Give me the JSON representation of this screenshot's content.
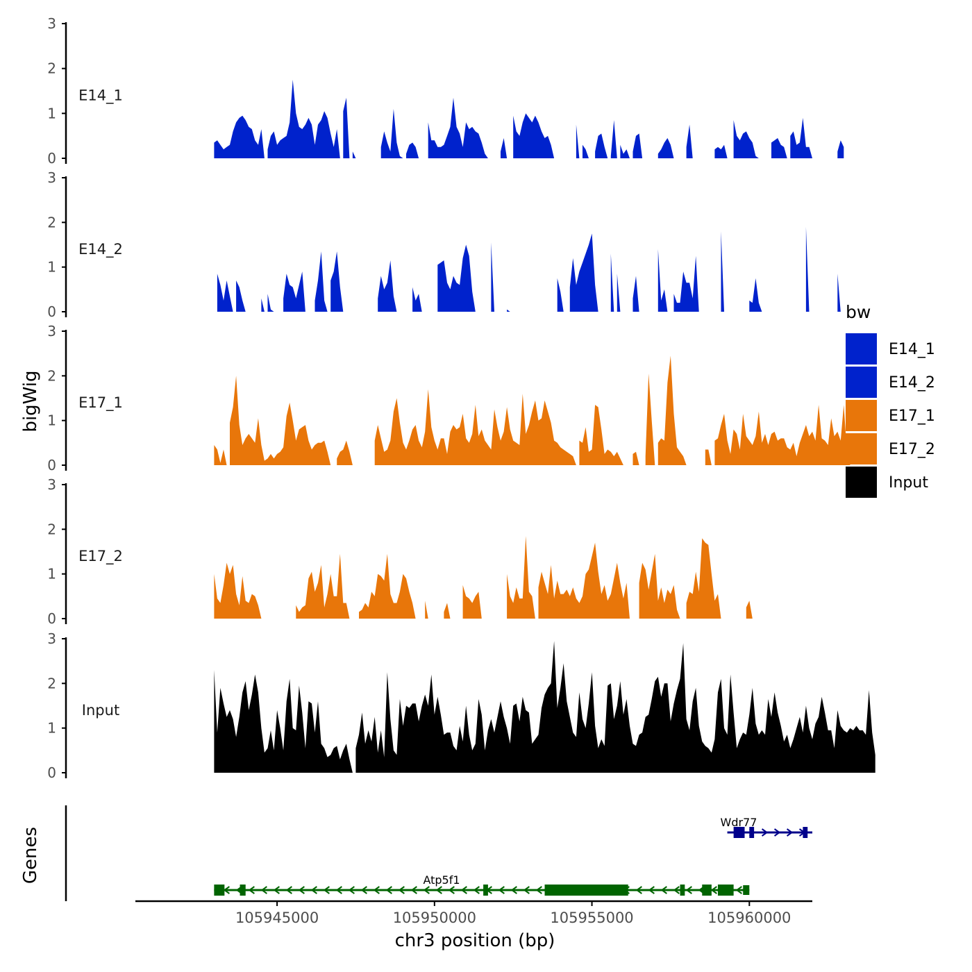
{
  "chart_data": {
    "type": "area",
    "y_axis_title": "bigWig",
    "genes_axis_title": "Genes",
    "xlabel": "chr3 position (bp)",
    "xlim": [
      105940500,
      105962000
    ],
    "x_ticks": [
      105945000,
      105950000,
      105955000,
      105960000
    ],
    "x_tick_labels": [
      "105945000",
      "105950000",
      "105955000",
      "105960000"
    ],
    "ylim": [
      0,
      3
    ],
    "y_ticks": [
      0,
      1,
      2,
      3
    ],
    "y_tick_labels": [
      "0",
      "1",
      "2",
      "3"
    ],
    "legend": {
      "title": "bw",
      "position": "right",
      "entries": [
        {
          "label": "E14_1",
          "color": "#0022cc"
        },
        {
          "label": "E14_2",
          "color": "#0022cc"
        },
        {
          "label": "E17_1",
          "color": "#e8760a"
        },
        {
          "label": "E17_2",
          "color": "#e8760a"
        },
        {
          "label": "Input",
          "color": "#000000"
        }
      ]
    },
    "x_start": 105943000,
    "x_step": 100,
    "series": [
      {
        "name": "E14_1",
        "color": "#0022cc",
        "values": [
          0.35,
          0.4,
          0.3,
          0.2,
          0.25,
          0.3,
          0.6,
          0.8,
          0.9,
          0.95,
          0.85,
          0.7,
          0.65,
          0.4,
          0.3,
          0.65,
          0.0,
          0.2,
          0.5,
          0.6,
          0.3,
          0.4,
          0.45,
          0.5,
          0.8,
          1.75,
          1.0,
          0.7,
          0.65,
          0.75,
          0.9,
          0.75,
          0.3,
          0.75,
          0.85,
          1.05,
          0.9,
          0.55,
          0.25,
          0.65,
          0.0,
          1.05,
          1.35,
          0.0,
          0.15,
          0.0,
          0.0,
          0.0,
          0.0,
          0.0,
          0.0,
          0.0,
          0.0,
          0.25,
          0.6,
          0.35,
          0.15,
          1.1,
          0.35,
          0.05,
          0.0,
          0.1,
          0.3,
          0.35,
          0.25,
          0.0,
          0.0,
          0.0,
          0.8,
          0.4,
          0.4,
          0.25,
          0.25,
          0.3,
          0.5,
          0.7,
          1.35,
          0.7,
          0.55,
          0.25,
          0.8,
          0.65,
          0.7,
          0.6,
          0.55,
          0.35,
          0.1,
          0.0,
          0.0,
          0.0,
          0.0,
          0.15,
          0.45,
          0.0,
          0.0,
          0.95,
          0.6,
          0.5,
          0.8,
          1.0,
          0.9,
          0.8,
          0.95,
          0.8,
          0.6,
          0.45,
          0.5,
          0.3,
          0.0,
          0.0,
          0.0,
          0.0,
          0.0,
          0.0,
          0.0,
          0.75,
          0.0,
          0.3,
          0.2,
          0.0,
          0.0,
          0.15,
          0.5,
          0.55,
          0.25,
          0.0,
          0.05,
          0.85,
          0.0,
          0.3,
          0.1,
          0.2,
          0.0,
          0.15,
          0.5,
          0.55,
          0.0,
          0.0,
          0.0,
          0.0,
          0.0,
          0.1,
          0.2,
          0.35,
          0.45,
          0.3,
          0.0,
          0.0,
          0.0,
          0.0,
          0.25,
          0.75,
          0.0,
          0.0,
          0.0,
          0.0,
          0.0,
          0.0,
          0.0,
          0.2,
          0.25,
          0.2,
          0.3,
          0.0,
          0.0,
          0.85,
          0.5,
          0.4,
          0.55,
          0.6,
          0.45,
          0.35,
          0.05,
          0.0,
          0.0,
          0.0,
          0.0,
          0.35,
          0.4,
          0.45,
          0.3,
          0.25,
          0.0,
          0.5,
          0.6,
          0.3,
          0.35,
          0.9,
          0.25,
          0.25,
          0.0,
          0.0,
          0.0,
          0.0,
          0.0,
          0.0,
          0.0,
          0.0,
          0.15,
          0.4,
          0.25
        ],
        "label": "E14_1"
      },
      {
        "name": "E14_2",
        "color": "#0022cc",
        "values": [
          0.0,
          0.85,
          0.6,
          0.25,
          0.7,
          0.35,
          0.0,
          0.7,
          0.55,
          0.25,
          0.0,
          0.0,
          0.0,
          0.0,
          0.0,
          0.3,
          0.0,
          0.4,
          0.05,
          0.0,
          0.0,
          0.0,
          0.3,
          0.85,
          0.6,
          0.55,
          0.3,
          0.6,
          0.9,
          0.0,
          0.0,
          0.0,
          0.25,
          0.7,
          1.35,
          0.25,
          0.0,
          0.7,
          0.9,
          1.35,
          0.55,
          0.0,
          0.0,
          0.0,
          0.0,
          0.0,
          0.0,
          0.0,
          0.0,
          0.0,
          0.0,
          0.0,
          0.3,
          0.8,
          0.5,
          0.65,
          1.15,
          0.35,
          0.0,
          0.0,
          0.0,
          0.0,
          0.0,
          0.55,
          0.25,
          0.4,
          0.0,
          0.0,
          0.0,
          0.0,
          0.0,
          1.05,
          1.1,
          1.15,
          0.65,
          0.5,
          0.8,
          0.65,
          0.6,
          1.2,
          1.5,
          1.25,
          0.45,
          0.0,
          0.0,
          0.0,
          0.0,
          0.0,
          1.55,
          0.0,
          0.0,
          0.0,
          0.0,
          0.05,
          0.0,
          0.0,
          0.0,
          0.0,
          0.0,
          0.0,
          0.0,
          0.0,
          0.0,
          0.0,
          0.0,
          0.0,
          0.0,
          0.0,
          0.0,
          0.75,
          0.45,
          0.0,
          0.0,
          0.55,
          1.2,
          0.6,
          0.9,
          1.1,
          1.3,
          1.5,
          1.75,
          0.6,
          0.0,
          0.0,
          0.0,
          0.0,
          1.3,
          0.0,
          0.85,
          0.0,
          0.0,
          0.0,
          0.0,
          0.3,
          0.8,
          0.0,
          0.0,
          0.0,
          0.0,
          0.0,
          0.0,
          1.4,
          0.25,
          0.5,
          0.0,
          0.0,
          0.4,
          0.2,
          0.2,
          0.9,
          0.65,
          0.65,
          0.3,
          1.25,
          0.0,
          0.0,
          0.0,
          0.0,
          0.0,
          0.0,
          0.0,
          1.8,
          0.0,
          0.0,
          0.0,
          0.0,
          0.0,
          0.0,
          0.0,
          0.0,
          0.25,
          0.2,
          0.75,
          0.2,
          0.0,
          0.0,
          0.0,
          0.0,
          0.0,
          0.0,
          0.0,
          0.0,
          0.0,
          0.0,
          0.0,
          0.0,
          0.0,
          0.0,
          1.9,
          0.0,
          0.0,
          0.0,
          0.0,
          0.0,
          0.0,
          0.0,
          0.0,
          0.0,
          0.85,
          0.0,
          0.0,
          0.0,
          0.0,
          0.0
        ],
        "label": "E14_2"
      },
      {
        "name": "E17_1",
        "color": "#e8760a",
        "values": [
          0.45,
          0.35,
          0.05,
          0.35,
          0.0,
          0.95,
          1.3,
          2.0,
          0.9,
          0.45,
          0.6,
          0.7,
          0.6,
          0.5,
          1.05,
          0.45,
          0.1,
          0.15,
          0.25,
          0.15,
          0.25,
          0.3,
          0.4,
          1.1,
          1.4,
          1.0,
          0.55,
          0.8,
          0.85,
          0.9,
          0.55,
          0.35,
          0.45,
          0.5,
          0.5,
          0.55,
          0.3,
          0.0,
          0.0,
          0.15,
          0.3,
          0.35,
          0.55,
          0.3,
          0.0,
          0.0,
          0.0,
          0.0,
          0.0,
          0.0,
          0.0,
          0.55,
          0.9,
          0.6,
          0.3,
          0.35,
          0.55,
          1.2,
          1.5,
          0.95,
          0.5,
          0.35,
          0.55,
          0.8,
          0.9,
          0.55,
          0.4,
          0.75,
          1.7,
          0.85,
          0.55,
          0.35,
          0.6,
          0.6,
          0.25,
          0.75,
          0.9,
          0.8,
          0.85,
          1.15,
          0.6,
          0.5,
          0.7,
          1.35,
          0.65,
          0.8,
          0.55,
          0.45,
          0.35,
          1.25,
          0.85,
          0.55,
          0.75,
          1.3,
          0.8,
          0.55,
          0.5,
          0.45,
          1.6,
          0.7,
          0.9,
          1.2,
          1.45,
          1.0,
          1.05,
          1.45,
          1.2,
          0.95,
          0.55,
          0.5,
          0.4,
          0.35,
          0.3,
          0.25,
          0.2,
          0.0,
          0.55,
          0.5,
          0.85,
          0.3,
          0.35,
          1.35,
          1.3,
          0.8,
          0.25,
          0.35,
          0.3,
          0.2,
          0.3,
          0.15,
          0.0,
          0.0,
          0.0,
          0.25,
          0.3,
          0.0,
          0.0,
          0.2,
          2.05,
          1.0,
          0.0,
          0.5,
          0.6,
          0.55,
          1.85,
          2.45,
          1.15,
          0.4,
          0.3,
          0.2,
          0.0,
          0.0,
          0.0,
          0.0,
          0.0,
          0.0,
          0.35,
          0.35,
          0.0,
          0.55,
          0.6,
          0.9,
          1.15,
          0.55,
          0.25,
          0.8,
          0.7,
          0.35,
          1.15,
          0.65,
          0.55,
          0.45,
          0.65,
          1.2,
          0.5,
          0.7,
          0.45,
          0.7,
          0.75,
          0.55,
          0.6,
          0.6,
          0.4,
          0.35,
          0.5,
          0.2,
          0.5,
          0.7,
          0.9,
          0.65,
          0.75,
          0.55,
          1.35,
          0.6,
          0.55,
          0.45,
          1.05,
          0.65,
          0.75,
          0.55,
          1.35,
          0.3,
          0.65
        ],
        "label": "E17_1"
      },
      {
        "name": "E17_2",
        "color": "#e8760a",
        "values": [
          1.0,
          0.45,
          0.35,
          0.75,
          1.25,
          1.0,
          1.2,
          0.55,
          0.3,
          0.95,
          0.4,
          0.35,
          0.55,
          0.5,
          0.3,
          0.0,
          0.0,
          0.0,
          0.0,
          0.0,
          0.0,
          0.0,
          0.0,
          0.0,
          0.0,
          0.0,
          0.3,
          0.15,
          0.25,
          0.3,
          0.9,
          1.05,
          0.6,
          0.8,
          1.2,
          0.25,
          0.55,
          1.0,
          0.5,
          0.5,
          1.45,
          0.35,
          0.35,
          0.0,
          0.0,
          0.0,
          0.15,
          0.2,
          0.35,
          0.25,
          0.6,
          0.5,
          1.0,
          0.95,
          0.85,
          1.45,
          0.55,
          0.35,
          0.35,
          0.6,
          1.0,
          0.9,
          0.6,
          0.35,
          0.0,
          0.0,
          0.0,
          0.4,
          0.0,
          0.0,
          0.0,
          0.0,
          0.0,
          0.15,
          0.35,
          0.0,
          0.0,
          0.0,
          0.0,
          0.75,
          0.5,
          0.45,
          0.35,
          0.5,
          0.6,
          0.0,
          0.0,
          0.0,
          0.0,
          0.0,
          0.0,
          0.0,
          0.0,
          1.0,
          0.5,
          0.35,
          0.7,
          0.45,
          0.45,
          1.85,
          0.6,
          0.5,
          0.0,
          0.7,
          1.05,
          0.8,
          0.55,
          1.2,
          0.45,
          0.85,
          0.55,
          0.55,
          0.65,
          0.5,
          0.7,
          0.45,
          0.35,
          0.5,
          1.0,
          1.1,
          1.4,
          1.7,
          1.05,
          0.55,
          0.75,
          0.4,
          0.55,
          0.9,
          1.25,
          0.8,
          0.45,
          0.8,
          0.0,
          0.0,
          0.0,
          0.8,
          1.25,
          1.1,
          0.65,
          1.05,
          1.45,
          0.4,
          0.7,
          0.35,
          0.65,
          0.55,
          0.75,
          0.2,
          0.0,
          0.0,
          0.35,
          0.6,
          0.55,
          1.05,
          0.6,
          1.8,
          1.7,
          1.65,
          1.0,
          0.4,
          0.55,
          0.0,
          0.0,
          0.0,
          0.0,
          0.0,
          0.0,
          0.0,
          0.0,
          0.25,
          0.4,
          0.0,
          0.0,
          0.0,
          0.0,
          0.0,
          0.0,
          0.0,
          0.0,
          0.0,
          0.0,
          0.0,
          0.0,
          0.0,
          0.0,
          0.0,
          0.0,
          0.0,
          0.0,
          0.0,
          0.0,
          0.0,
          0.0,
          0.0,
          0.0,
          0.0,
          0.0,
          0.0,
          0.0,
          0.0,
          0.0,
          0.0,
          0.0
        ],
        "label": "E17_2"
      },
      {
        "name": "Input",
        "color": "#000000",
        "values": [
          2.3,
          0.9,
          1.9,
          1.55,
          1.25,
          1.4,
          1.2,
          0.8,
          1.25,
          1.8,
          2.05,
          1.4,
          1.75,
          2.2,
          1.8,
          1.0,
          0.45,
          0.55,
          0.95,
          0.5,
          1.4,
          1.0,
          0.5,
          1.6,
          2.1,
          1.0,
          0.95,
          1.95,
          1.35,
          0.55,
          1.6,
          1.55,
          0.9,
          1.6,
          0.65,
          0.55,
          0.35,
          0.4,
          0.55,
          0.6,
          0.3,
          0.5,
          0.65,
          0.3,
          0.0,
          0.55,
          0.85,
          1.35,
          0.65,
          0.95,
          0.7,
          1.25,
          0.45,
          0.95,
          0.35,
          2.25,
          1.2,
          0.5,
          0.4,
          1.65,
          1.05,
          1.5,
          1.45,
          1.55,
          1.55,
          1.15,
          1.5,
          1.75,
          1.5,
          2.2,
          1.3,
          1.7,
          1.3,
          0.85,
          0.9,
          0.9,
          0.6,
          0.5,
          1.05,
          0.7,
          1.5,
          0.85,
          0.5,
          0.65,
          1.65,
          1.3,
          0.5,
          0.95,
          1.2,
          0.9,
          1.25,
          1.6,
          1.25,
          1.0,
          0.65,
          1.5,
          1.55,
          1.15,
          1.7,
          1.4,
          1.35,
          0.65,
          0.75,
          0.85,
          1.45,
          1.75,
          1.9,
          2.0,
          2.95,
          1.45,
          1.9,
          2.45,
          1.6,
          1.25,
          0.9,
          0.8,
          1.8,
          1.2,
          1.0,
          1.55,
          2.25,
          1.05,
          0.55,
          0.75,
          0.6,
          1.95,
          2.0,
          1.2,
          1.5,
          2.05,
          1.3,
          1.65,
          1.05,
          0.65,
          0.6,
          0.85,
          0.9,
          1.25,
          1.3,
          1.65,
          2.05,
          2.15,
          1.7,
          2.0,
          2.0,
          1.15,
          1.55,
          1.85,
          2.1,
          2.9,
          1.2,
          0.95,
          1.6,
          1.9,
          1.05,
          0.7,
          0.6,
          0.55,
          0.45,
          0.75,
          1.8,
          2.1,
          1.0,
          0.85,
          2.2,
          1.35,
          0.55,
          0.75,
          0.9,
          0.85,
          1.3,
          1.9,
          1.1,
          0.85,
          0.95,
          0.85,
          1.65,
          1.25,
          1.8,
          1.35,
          1.05,
          0.7,
          0.85,
          0.55,
          0.75,
          1.0,
          1.25,
          0.9,
          1.5,
          1.0,
          0.75,
          1.1,
          1.25,
          1.7,
          1.35,
          0.95,
          0.95,
          0.55,
          1.4,
          1.05,
          0.95,
          0.9,
          1.0,
          0.95,
          1.05,
          0.95,
          0.95,
          0.85,
          1.85,
          0.9,
          0.4
        ],
        "label": "Input"
      }
    ],
    "genes": [
      {
        "name": "Atp5f1",
        "strand": "-",
        "start": 105943000,
        "end": 105960000,
        "color": "#006400"
      },
      {
        "name": "Wdr77",
        "strand": "+",
        "start": 105959300,
        "end": 105962000,
        "color": "#00008b"
      }
    ]
  }
}
